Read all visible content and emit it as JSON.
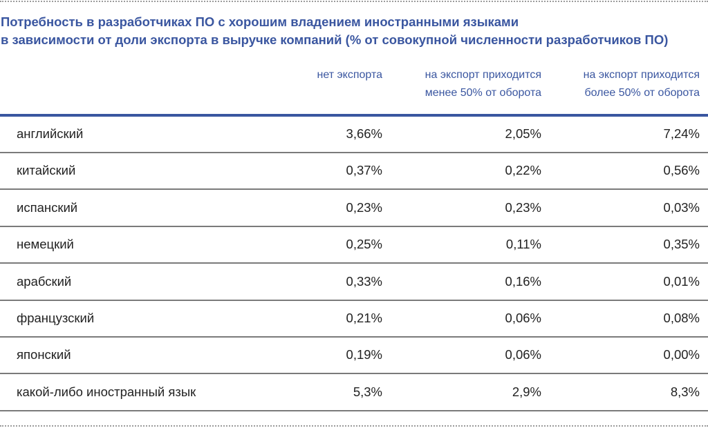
{
  "title": {
    "line1": "Потребность в разработчиках ПО с хорошим владением иностранными языками",
    "line2": "в зависимости от доли экспорта в выручке компаний (% от совокупной численности разработчиков ПО)"
  },
  "columns": [
    {
      "line1": "нет экспорта",
      "line2": ""
    },
    {
      "line1": "на экспорт приходится",
      "line2": "менее 50% от оборота"
    },
    {
      "line1": "на экспорт приходится",
      "line2": "более 50% от оборота"
    }
  ],
  "rows": [
    {
      "label": "английский",
      "values": [
        "3,66%",
        "2,05%",
        "7,24%"
      ]
    },
    {
      "label": "китайский",
      "values": [
        "0,37%",
        "0,22%",
        "0,56%"
      ]
    },
    {
      "label": "испанский",
      "values": [
        "0,23%",
        "0,23%",
        "0,03%"
      ]
    },
    {
      "label": "немецкий",
      "values": [
        "0,25%",
        "0,11%",
        "0,35%"
      ]
    },
    {
      "label": "арабский",
      "values": [
        "0,33%",
        "0,16%",
        "0,01%"
      ]
    },
    {
      "label": "французский",
      "values": [
        "0,21%",
        "0,06%",
        "0,08%"
      ]
    },
    {
      "label": "японский",
      "values": [
        "0,19%",
        "0,06%",
        "0,00%"
      ]
    },
    {
      "label": "какой-либо иностранный язык",
      "values": [
        "5,3%",
        "2,9%",
        "8,3%"
      ]
    }
  ],
  "colors": {
    "accent": "#3a56a0",
    "text": "#222222",
    "rule": "#7a7a7a"
  }
}
